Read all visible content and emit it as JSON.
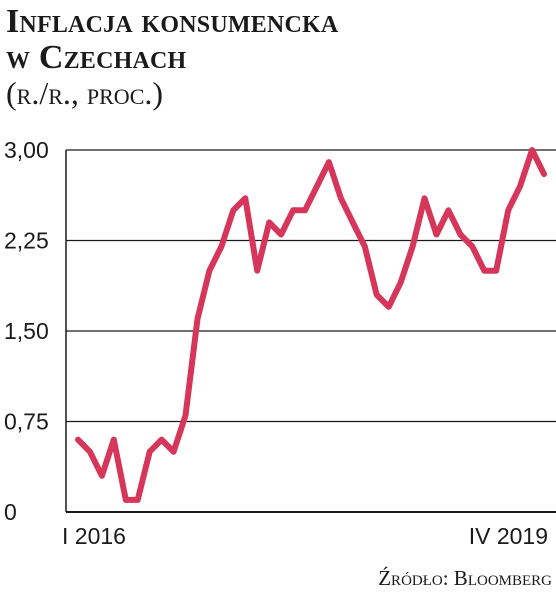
{
  "header": {
    "title_line1": "Inflacja konsumencka",
    "title_line2": "w Czechach",
    "subtitle": "(r./r., proc.)"
  },
  "footer": {
    "source": "Źródło: Bloomberg"
  },
  "colors": {
    "line": "#d6365a",
    "grid": "#1a1a1a",
    "text": "#1a1a1a"
  },
  "chart_data": {
    "type": "line",
    "title": "Inflacja konsumencka w Czechach",
    "subtitle": "(r./r., proc.)",
    "xlabel": "",
    "ylabel": "",
    "ylim": [
      0,
      3.0
    ],
    "y_ticks": [
      0,
      0.75,
      1.5,
      2.25,
      3.0
    ],
    "y_tick_labels": [
      "0",
      "0,75",
      "1,50",
      "2,25",
      "3,00"
    ],
    "x_tick_labels": [
      "I 2016",
      "IV 2019"
    ],
    "grid": true,
    "series": [
      {
        "values": [
          0.6,
          0.5,
          0.3,
          0.6,
          0.1,
          0.1,
          0.5,
          0.6,
          0.5,
          0.8,
          1.6,
          2.0,
          2.2,
          2.5,
          2.6,
          2.0,
          2.4,
          2.3,
          2.5,
          2.5,
          2.7,
          2.9,
          2.6,
          2.4,
          2.2,
          1.8,
          1.7,
          1.9,
          2.2,
          2.6,
          2.3,
          2.5,
          2.3,
          2.2,
          2.0,
          2.0,
          2.5,
          2.7,
          3.0,
          2.8
        ]
      }
    ]
  }
}
